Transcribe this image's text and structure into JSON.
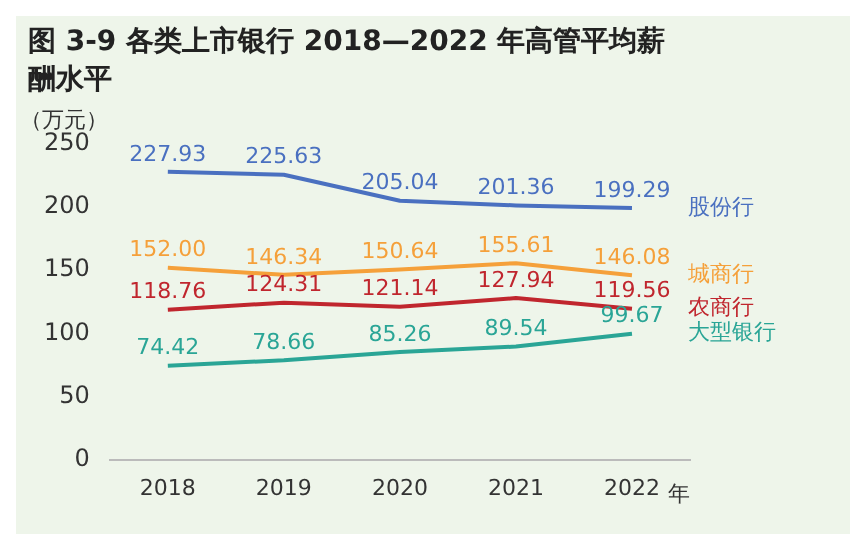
{
  "chart_data": {
    "type": "line",
    "title": "图 3-9  各类上市银行 2018—2022 年高管平均薪酬水平",
    "ylabel": "（万元）",
    "xlabel": "年",
    "categories": [
      "2018",
      "2019",
      "2020",
      "2021",
      "2022"
    ],
    "series": [
      {
        "name": "股份行",
        "color": "#4a70c0",
        "values": [
          227.93,
          225.63,
          205.04,
          201.36,
          199.29
        ],
        "value_labels": [
          "227.93",
          "225.63",
          "205.04",
          "201.36",
          "199.29"
        ]
      },
      {
        "name": "城商行",
        "color": "#f5a03a",
        "values": [
          152.0,
          146.34,
          150.64,
          155.61,
          146.08
        ],
        "value_labels": [
          "152.00",
          "146.34",
          "150.64",
          "155.61",
          "146.08"
        ]
      },
      {
        "name": "农商行",
        "color": "#c0262e",
        "values": [
          118.76,
          124.31,
          121.14,
          127.94,
          119.56
        ],
        "value_labels": [
          "118.76",
          "124.31",
          "121.14",
          "127.94",
          "119.56"
        ]
      },
      {
        "name": "大型银行",
        "color": "#2aa596",
        "values": [
          74.42,
          78.66,
          85.26,
          89.54,
          99.67
        ],
        "value_labels": [
          "74.42",
          "78.66",
          "85.26",
          "89.54",
          "99.67"
        ]
      }
    ],
    "ylim": [
      0,
      250
    ],
    "yticks": [
      0,
      50,
      100,
      150,
      200,
      250
    ],
    "grid": false,
    "legend": false,
    "marker": "none",
    "line_style": "solid"
  }
}
